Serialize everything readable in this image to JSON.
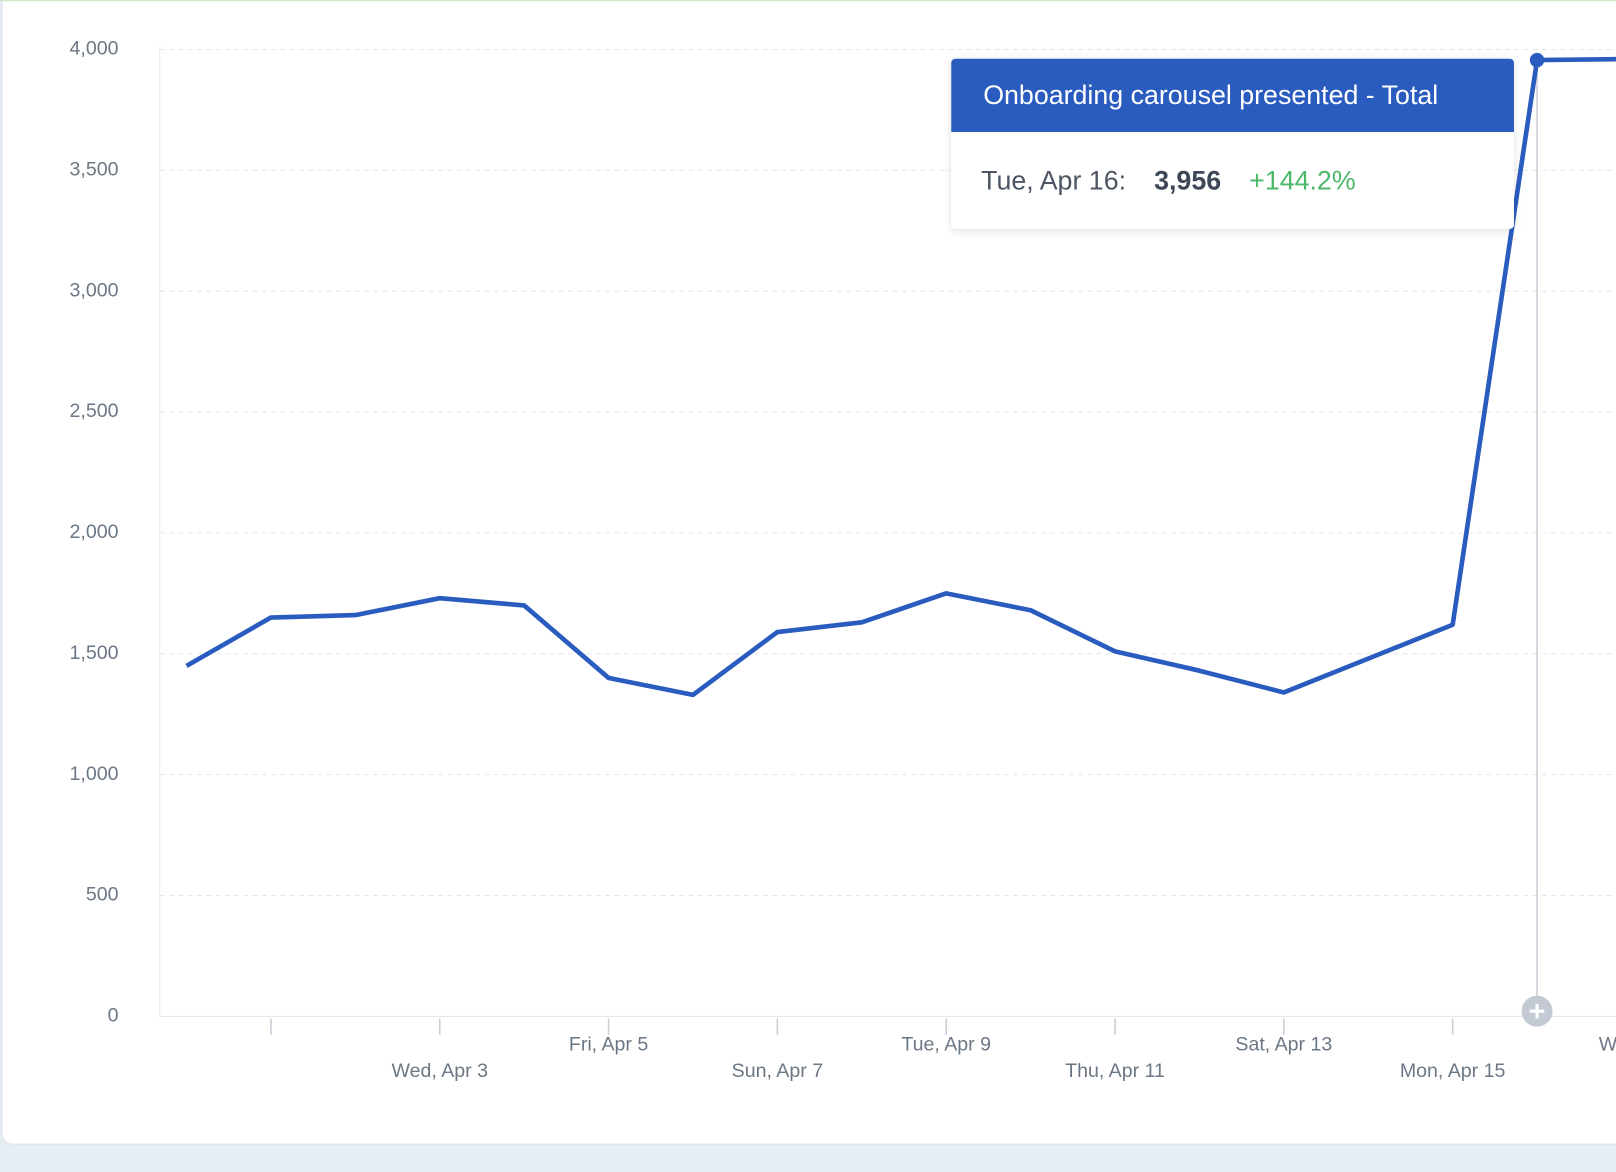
{
  "chart_data": {
    "type": "line",
    "categories": [
      null,
      null,
      null,
      "Wed, Apr 3",
      null,
      "Fri, Apr 5",
      null,
      "Sun, Apr 7",
      null,
      "Tue, Apr 9",
      null,
      "Thu, Apr 11",
      null,
      "Sat, Apr 13",
      null,
      "Mon, Apr 15",
      null,
      "Wed,"
    ],
    "series": [
      {
        "name": "Onboarding carousel presented - Total",
        "color": "#2a5cbf",
        "values": [
          1450,
          1650,
          1660,
          1730,
          1700,
          1400,
          1330,
          1590,
          1630,
          1750,
          1680,
          1510,
          1430,
          1340,
          1480,
          1620,
          3956,
          3960
        ]
      }
    ],
    "ylim": [
      0,
      4000
    ],
    "yticks": [
      0,
      500,
      {
        "value": 1000,
        "label": "1,000"
      },
      {
        "value": 1500,
        "label": "1,500"
      },
      {
        "value": 2000,
        "label": "2,000"
      },
      {
        "value": 2500,
        "label": "2,500"
      },
      {
        "value": 3000,
        "label": "3,000"
      },
      {
        "value": 3500,
        "label": "3,500"
      },
      {
        "value": 4000,
        "label": "4,000"
      }
    ],
    "grid": true,
    "tooltip": {
      "title": "Onboarding carousel presented - Total",
      "date": "Tue, Apr 16:",
      "value": "3,956",
      "change": "+144.2%"
    }
  }
}
